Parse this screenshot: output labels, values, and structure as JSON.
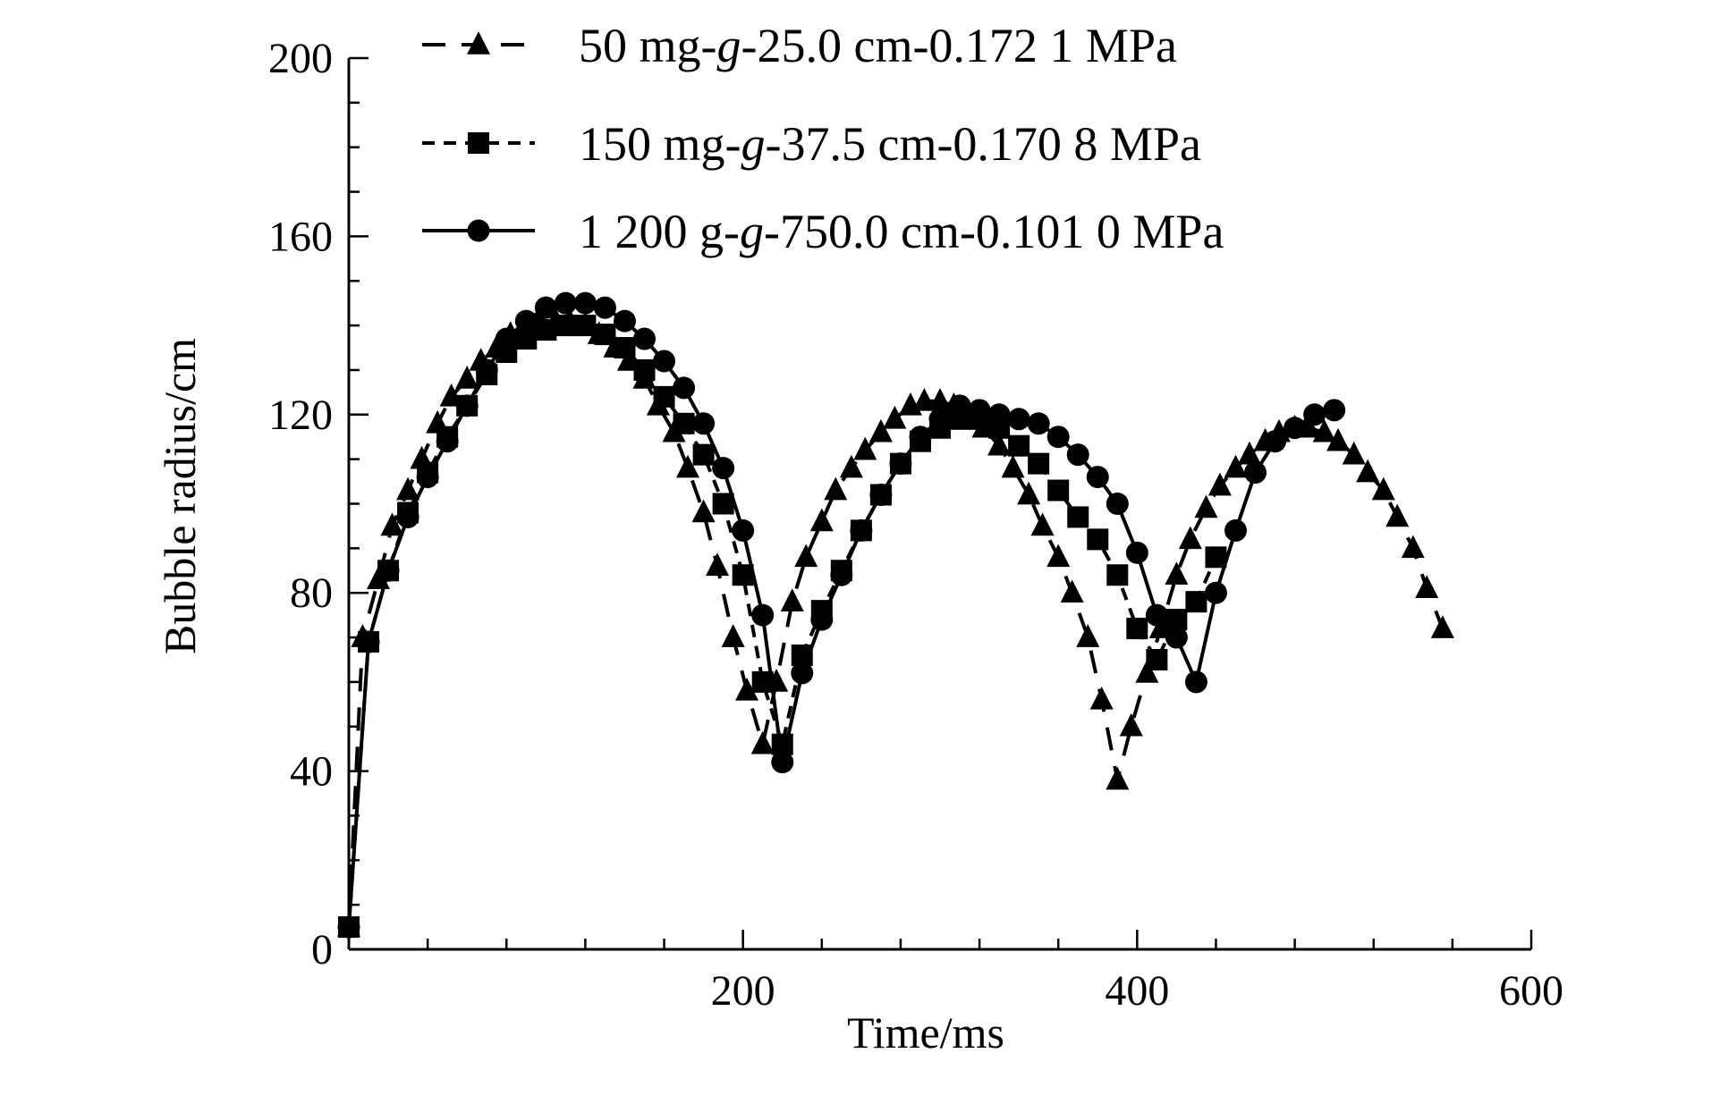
{
  "chart_data": {
    "type": "line",
    "xlabel": "Time/ms",
    "ylabel": "Bubble radius/cm",
    "xlim": [
      0,
      600
    ],
    "ylim": [
      0,
      200
    ],
    "x_ticks": [
      200,
      400,
      600
    ],
    "y_ticks": [
      0,
      40,
      80,
      120,
      160,
      200
    ],
    "x_minor_step": 40,
    "y_minor_step": 10,
    "grid": false,
    "legend_position": "top-center",
    "series": [
      {
        "name_parts": [
          "50 mg-",
          "g",
          "-25.0 cm-0.172 1 MPa"
        ],
        "marker": "triangle",
        "line_style": "dashed-long",
        "x": [
          0,
          7,
          15,
          22,
          30,
          37,
          45,
          52,
          60,
          67,
          75,
          82,
          90,
          97,
          105,
          112,
          120,
          127,
          135,
          142,
          150,
          157,
          165,
          172,
          180,
          187,
          195,
          202,
          210,
          217,
          225,
          232,
          240,
          247,
          255,
          262,
          270,
          277,
          285,
          292,
          300,
          307,
          315,
          322,
          330,
          337,
          345,
          352,
          360,
          367,
          375,
          382,
          390,
          397,
          405,
          412,
          420,
          427,
          435,
          442,
          450,
          457,
          465,
          472,
          480,
          487,
          495,
          502,
          510,
          517,
          525,
          532,
          540,
          547,
          555
        ],
        "y": [
          5,
          70,
          83,
          95,
          103,
          110,
          118,
          124,
          128,
          132,
          135,
          138,
          140,
          141,
          141,
          141,
          140,
          138,
          135,
          132,
          128,
          122,
          116,
          108,
          98,
          86,
          70,
          58,
          46,
          60,
          78,
          88,
          96,
          103,
          108,
          112,
          116,
          119,
          122,
          123,
          123,
          122,
          120,
          117,
          113,
          108,
          102,
          95,
          88,
          80,
          70,
          56,
          38,
          50,
          62,
          72,
          84,
          92,
          99,
          104,
          108,
          111,
          114,
          116,
          117,
          117,
          116,
          114,
          111,
          107,
          103,
          97,
          90,
          81,
          72
        ]
      },
      {
        "name_parts": [
          "150 mg-",
          "g",
          "-37.5 cm-0.170 8 MPa"
        ],
        "marker": "square",
        "line_style": "dashed-short",
        "x": [
          0,
          10,
          20,
          30,
          40,
          50,
          60,
          70,
          80,
          90,
          100,
          110,
          120,
          130,
          140,
          150,
          160,
          170,
          180,
          190,
          200,
          210,
          220,
          230,
          240,
          250,
          260,
          270,
          280,
          290,
          300,
          310,
          320,
          330,
          340,
          350,
          360,
          370,
          380,
          390,
          400,
          410,
          420,
          430,
          440
        ],
        "y": [
          5,
          69,
          85,
          98,
          107,
          115,
          122,
          129,
          134,
          137,
          139,
          140,
          140,
          138,
          135,
          130,
          124,
          118,
          111,
          100,
          84,
          60,
          46,
          66,
          76,
          85,
          94,
          102,
          109,
          114,
          117,
          119,
          119,
          117,
          113,
          109,
          103,
          97,
          92,
          84,
          72,
          65,
          74,
          78,
          88
        ]
      },
      {
        "name_parts": [
          "1 200 g-",
          "g",
          "-750.0 cm-0.101 0 MPa"
        ],
        "marker": "circle",
        "line_style": "solid",
        "x": [
          0,
          10,
          20,
          30,
          40,
          50,
          60,
          70,
          80,
          90,
          100,
          110,
          120,
          130,
          140,
          150,
          160,
          170,
          180,
          190,
          200,
          210,
          220,
          230,
          240,
          250,
          260,
          270,
          280,
          290,
          300,
          310,
          320,
          330,
          340,
          350,
          360,
          370,
          380,
          390,
          400,
          410,
          420,
          430,
          440,
          450,
          460,
          470,
          480,
          490,
          500
        ],
        "y": [
          5,
          69,
          85,
          97,
          106,
          114,
          122,
          130,
          137,
          141,
          144,
          145,
          145,
          144,
          141,
          137,
          132,
          126,
          118,
          108,
          94,
          75,
          42,
          62,
          74,
          84,
          94,
          102,
          109,
          115,
          119,
          122,
          121,
          120,
          119,
          118,
          115,
          111,
          106,
          100,
          89,
          75,
          70,
          60,
          80,
          94,
          107,
          114,
          117,
          120,
          121
        ]
      }
    ]
  }
}
